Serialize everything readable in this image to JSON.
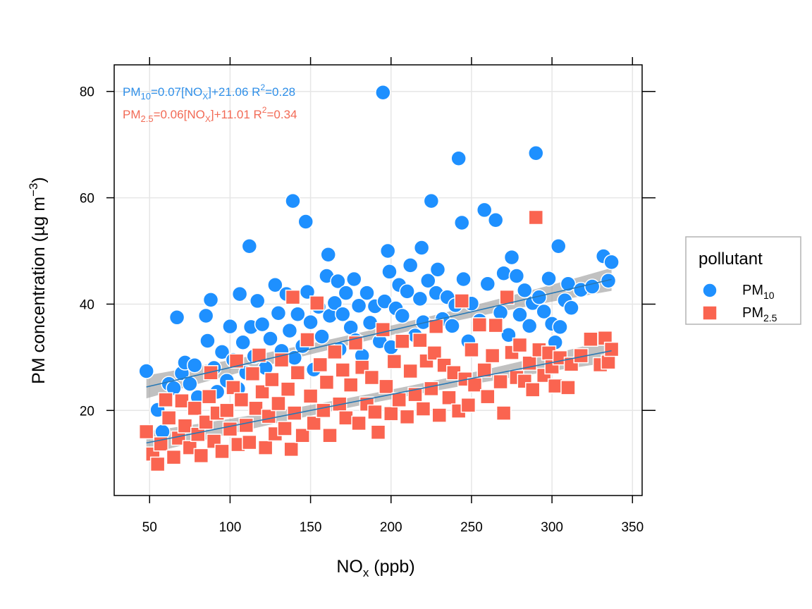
{
  "chart_data": {
    "type": "scatter",
    "xlabel": {
      "main": "NO",
      "sub": "x",
      "rest": " (ppb)"
    },
    "ylabel": {
      "main": "PM concentration (µg m",
      "sup": "−3",
      "rest": ")"
    },
    "xlim": [
      28,
      356
    ],
    "ylim": [
      4,
      85
    ],
    "x_ticks": [
      50,
      100,
      150,
      200,
      250,
      300,
      350
    ],
    "y_ticks": [
      20,
      40,
      60,
      80
    ],
    "grid": true,
    "legend": {
      "title": "pollutant",
      "position": "right",
      "entries": [
        {
          "main": "PM",
          "sub": "10",
          "series": "PM10"
        },
        {
          "main": "PM",
          "sub": "2.5",
          "series": "PM25"
        }
      ]
    },
    "annotations": [
      {
        "series": "PM10",
        "color": "#2F8FE8",
        "pre": "PM",
        "sub1": "10",
        "mid1": "=0.07[NO",
        "sub2": "X",
        "mid2": "]+21.06 R",
        "sup": "2",
        "post": "=0.28"
      },
      {
        "series": "PM25",
        "color": "#F26A55",
        "pre": "PM",
        "sub1": "2.5",
        "mid1": "=0.06[NO",
        "sub2": "X",
        "mid2": "]+11.01 R",
        "sup": "2",
        "post": "=0.34"
      }
    ],
    "series": [
      {
        "name": "PM10",
        "color": "#1E90FF",
        "marker": "circle",
        "fit": {
          "slope": 0.07,
          "intercept": 21.06,
          "x_range": [
            48,
            337
          ],
          "band": 0.9
        },
        "points": [
          [
            48,
            27.4
          ],
          [
            55,
            20.1
          ],
          [
            58,
            16
          ],
          [
            62,
            25
          ],
          [
            65,
            24.2
          ],
          [
            67,
            37.5
          ],
          [
            70,
            27
          ],
          [
            72,
            29
          ],
          [
            75,
            25
          ],
          [
            78,
            28.5
          ],
          [
            80,
            22.5
          ],
          [
            85,
            37.8
          ],
          [
            86,
            33.1
          ],
          [
            88,
            40.8
          ],
          [
            90,
            28
          ],
          [
            92,
            23.5
          ],
          [
            95,
            31
          ],
          [
            98,
            25.6
          ],
          [
            100,
            35.8
          ],
          [
            102,
            29.5
          ],
          [
            105,
            24.1
          ],
          [
            106,
            41.9
          ],
          [
            108,
            32.8
          ],
          [
            110,
            27.1
          ],
          [
            112,
            50.9
          ],
          [
            113,
            35.7
          ],
          [
            115,
            30.2
          ],
          [
            117,
            40.6
          ],
          [
            120,
            36.2
          ],
          [
            122,
            28
          ],
          [
            125,
            33.5
          ],
          [
            128,
            43.6
          ],
          [
            130,
            38.3
          ],
          [
            132,
            31.2
          ],
          [
            135,
            41.9
          ],
          [
            137,
            35
          ],
          [
            139,
            59.4
          ],
          [
            140,
            29.9
          ],
          [
            142,
            38.1
          ],
          [
            145,
            32.1
          ],
          [
            147,
            55.5
          ],
          [
            148,
            42.3
          ],
          [
            150,
            36.6
          ],
          [
            152,
            27.7
          ],
          [
            155,
            39.5
          ],
          [
            157,
            33.9
          ],
          [
            160,
            45.3
          ],
          [
            161,
            49.3
          ],
          [
            162,
            37.8
          ],
          [
            165,
            40.2
          ],
          [
            167,
            44.3
          ],
          [
            168,
            31.5
          ],
          [
            170,
            38.1
          ],
          [
            172,
            42.1
          ],
          [
            175,
            35.6
          ],
          [
            177,
            44.7
          ],
          [
            178,
            33.2
          ],
          [
            180,
            39.7
          ],
          [
            182,
            30.3
          ],
          [
            185,
            42.1
          ],
          [
            187,
            36.5
          ],
          [
            190,
            39.6
          ],
          [
            193,
            33
          ],
          [
            195,
            79.8
          ],
          [
            196,
            40.5
          ],
          [
            198,
            50
          ],
          [
            199,
            46.1
          ],
          [
            200,
            31.9
          ],
          [
            203,
            39.2
          ],
          [
            205,
            43.6
          ],
          [
            207,
            37.8
          ],
          [
            210,
            42.4
          ],
          [
            212,
            47.3
          ],
          [
            215,
            34.1
          ],
          [
            218,
            41
          ],
          [
            219,
            50.6
          ],
          [
            220,
            36.6
          ],
          [
            223,
            44.4
          ],
          [
            225,
            59.4
          ],
          [
            228,
            42.1
          ],
          [
            229,
            46.5
          ],
          [
            232,
            37.2
          ],
          [
            235,
            41.3
          ],
          [
            238,
            35.9
          ],
          [
            240,
            39.8
          ],
          [
            242,
            67.4
          ],
          [
            244,
            55.3
          ],
          [
            245,
            44.7
          ],
          [
            248,
            33
          ],
          [
            250,
            40.1
          ],
          [
            255,
            36.9
          ],
          [
            258,
            57.7
          ],
          [
            260,
            43.8
          ],
          [
            265,
            55.8
          ],
          [
            268,
            38.4
          ],
          [
            270,
            45.8
          ],
          [
            273,
            34.2
          ],
          [
            275,
            48.8
          ],
          [
            278,
            45.3
          ],
          [
            280,
            38
          ],
          [
            283,
            42.6
          ],
          [
            286,
            35.9
          ],
          [
            288,
            40.2
          ],
          [
            290,
            68.4
          ],
          [
            292,
            41.3
          ],
          [
            295,
            38.6
          ],
          [
            298,
            44.8
          ],
          [
            300,
            36.3
          ],
          [
            302,
            32.8
          ],
          [
            304,
            50.9
          ],
          [
            305,
            35.7
          ],
          [
            308,
            40.7
          ],
          [
            310,
            43.8
          ],
          [
            312,
            39.3
          ],
          [
            318,
            42.7
          ],
          [
            325,
            43.3
          ],
          [
            332,
            49
          ],
          [
            335,
            44.4
          ],
          [
            337,
            47.9
          ]
        ]
      },
      {
        "name": "PM2.5",
        "color": "#FA6450",
        "marker": "square",
        "fit": {
          "slope": 0.06,
          "intercept": 11.01,
          "x_range": [
            48,
            337
          ],
          "band": 0.9
        },
        "points": [
          [
            48,
            16
          ],
          [
            52,
            11.8
          ],
          [
            55,
            9.9
          ],
          [
            57,
            13.7
          ],
          [
            60,
            22
          ],
          [
            62,
            18.6
          ],
          [
            65,
            11.2
          ],
          [
            68,
            14.8
          ],
          [
            70,
            21.8
          ],
          [
            72,
            17.1
          ],
          [
            75,
            13
          ],
          [
            78,
            20.4
          ],
          [
            80,
            15.5
          ],
          [
            82,
            11.5
          ],
          [
            85,
            17.8
          ],
          [
            87,
            22.6
          ],
          [
            88,
            27.1
          ],
          [
            90,
            14.2
          ],
          [
            92,
            19.5
          ],
          [
            95,
            12.3
          ],
          [
            98,
            20
          ],
          [
            100,
            16.5
          ],
          [
            102,
            24.3
          ],
          [
            104,
            29.3
          ],
          [
            105,
            13.6
          ],
          [
            107,
            22
          ],
          [
            110,
            17.2
          ],
          [
            112,
            14
          ],
          [
            114,
            26.9
          ],
          [
            116,
            20.4
          ],
          [
            118,
            30.4
          ],
          [
            120,
            23.5
          ],
          [
            122,
            13
          ],
          [
            124,
            18.9
          ],
          [
            126,
            25.8
          ],
          [
            128,
            15.6
          ],
          [
            130,
            21.3
          ],
          [
            132,
            29.5
          ],
          [
            134,
            16.6
          ],
          [
            136,
            24
          ],
          [
            138,
            12.7
          ],
          [
            139,
            41.3
          ],
          [
            140,
            19.5
          ],
          [
            142,
            27.1
          ],
          [
            145,
            15.3
          ],
          [
            148,
            33.3
          ],
          [
            150,
            22.7
          ],
          [
            152,
            17.6
          ],
          [
            154,
            40.2
          ],
          [
            156,
            28.6
          ],
          [
            158,
            20
          ],
          [
            160,
            25.3
          ],
          [
            162,
            15.3
          ],
          [
            165,
            31
          ],
          [
            168,
            21.2
          ],
          [
            170,
            27.6
          ],
          [
            172,
            18.6
          ],
          [
            175,
            24.8
          ],
          [
            178,
            32.7
          ],
          [
            180,
            17.6
          ],
          [
            182,
            28.1
          ],
          [
            185,
            21.2
          ],
          [
            188,
            26.2
          ],
          [
            190,
            19.7
          ],
          [
            192,
            15.9
          ],
          [
            195,
            35.2
          ],
          [
            197,
            24.5
          ],
          [
            200,
            19.4
          ],
          [
            202,
            29.2
          ],
          [
            205,
            22
          ],
          [
            207,
            33
          ],
          [
            210,
            18.8
          ],
          [
            212,
            27.4
          ],
          [
            215,
            23
          ],
          [
            218,
            33.2
          ],
          [
            220,
            20.3
          ],
          [
            222,
            29.3
          ],
          [
            225,
            24.1
          ],
          [
            227,
            30.8
          ],
          [
            228,
            35.8
          ],
          [
            230,
            19.1
          ],
          [
            233,
            28.5
          ],
          [
            236,
            22.4
          ],
          [
            239,
            27.1
          ],
          [
            242,
            19.9
          ],
          [
            244,
            40.6
          ],
          [
            246,
            25.9
          ],
          [
            248,
            21
          ],
          [
            250,
            31.4
          ],
          [
            252,
            24.8
          ],
          [
            255,
            36.1
          ],
          [
            258,
            27.6
          ],
          [
            260,
            22.6
          ],
          [
            263,
            30.3
          ],
          [
            265,
            36
          ],
          [
            268,
            25.4
          ],
          [
            270,
            19.5
          ],
          [
            272,
            41.3
          ],
          [
            275,
            30.9
          ],
          [
            278,
            26.2
          ],
          [
            280,
            32.3
          ],
          [
            283,
            25.5
          ],
          [
            286,
            28.9
          ],
          [
            288,
            23.9
          ],
          [
            290,
            56.3
          ],
          [
            292,
            31.4
          ],
          [
            295,
            26.6
          ],
          [
            298,
            30.8
          ],
          [
            300,
            28.2
          ],
          [
            302,
            24.6
          ],
          [
            305,
            29.9
          ],
          [
            310,
            24.3
          ],
          [
            312,
            28.7
          ],
          [
            318,
            30.3
          ],
          [
            324,
            33.4
          ],
          [
            330,
            28.6
          ],
          [
            333,
            33.6
          ],
          [
            335,
            29.1
          ],
          [
            337,
            31.5
          ]
        ]
      }
    ]
  }
}
